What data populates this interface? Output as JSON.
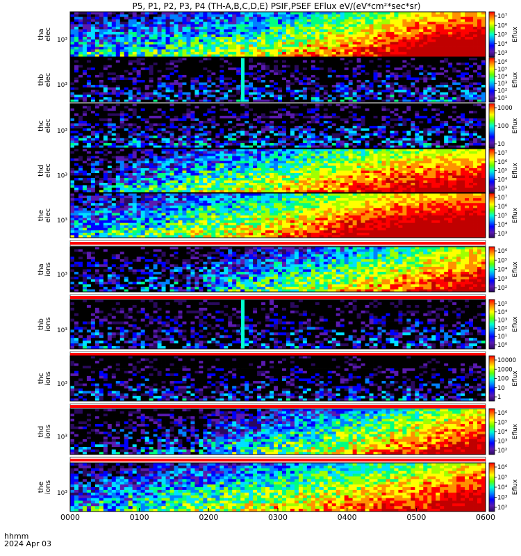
{
  "title": "P5, P1, P2, P3, P4 (TH-A,B,C,D,E) PSIF,PSEF EFlux eV/(eV*cm²*sec*sr)",
  "footer": {
    "label_line1": "hhmm",
    "label_line2": "2024 Apr 03"
  },
  "colorbar_title": "Eflux",
  "colors": {
    "scale": [
      "#000000",
      "#2a0a5e",
      "#5a1ab0",
      "#0000ff",
      "#0080ff",
      "#00e0ff",
      "#00ff80",
      "#a0ff00",
      "#ffff00",
      "#ff9000",
      "#ff0000",
      "#c00000"
    ]
  },
  "chart_data": {
    "type": "heatmap",
    "x_ticks": [
      "0000",
      "0100",
      "0200",
      "0300",
      "0400",
      "0500",
      "0600"
    ],
    "x_range_hours": [
      0,
      6
    ],
    "panels": [
      {
        "id": "tha-elec",
        "label1": "tha",
        "label2": "elec",
        "y_tick": "10³",
        "cbar_ticks": [
          "10⁷",
          "10⁶",
          "10⁵",
          "10⁴",
          "10³"
        ],
        "has_status_bar": false,
        "spike": false,
        "profile": [
          0.3,
          0.35,
          0.45,
          0.55,
          0.68,
          0.85,
          0.95
        ]
      },
      {
        "id": "thb-elec",
        "label1": "thb",
        "label2": "elec",
        "y_tick": "10³",
        "cbar_ticks": [
          "10⁶",
          "10⁵",
          "10⁴",
          "10³",
          "10²",
          "10¹"
        ],
        "has_status_bar": false,
        "spike": true,
        "profile": [
          0.12,
          0.12,
          0.14,
          0.14,
          0.15,
          0.15,
          0.16
        ]
      },
      {
        "id": "thc-elec",
        "label1": "thc",
        "label2": "elec",
        "y_tick": "10³",
        "cbar_ticks": [
          "1000",
          "100",
          "10"
        ],
        "has_status_bar": false,
        "spike": false,
        "profile": [
          0.18,
          0.18,
          0.18,
          0.18,
          0.18,
          0.18,
          0.18
        ]
      },
      {
        "id": "thd-elec",
        "label1": "thd",
        "label2": "elec",
        "y_tick": "10³",
        "cbar_ticks": [
          "10⁷",
          "10⁶",
          "10⁵",
          "10⁴",
          "10³"
        ],
        "has_status_bar": false,
        "spike": false,
        "profile": [
          0.15,
          0.3,
          0.45,
          0.55,
          0.7,
          0.8,
          0.85
        ]
      },
      {
        "id": "the-elec",
        "label1": "the",
        "label2": "elec",
        "y_tick": "10³",
        "cbar_ticks": [
          "10⁷",
          "10⁶",
          "10⁵",
          "10⁴",
          "10³"
        ],
        "has_status_bar": true,
        "spike": false,
        "profile": [
          0.3,
          0.4,
          0.5,
          0.62,
          0.8,
          0.9,
          0.95
        ]
      },
      {
        "id": "tha-ions",
        "label1": "tha",
        "label2": "ions",
        "y_tick": "10³",
        "cbar_ticks": [
          "10⁶",
          "10⁵",
          "10⁴",
          "10³",
          "10²"
        ],
        "has_status_bar": true,
        "spike": false,
        "profile": [
          0.12,
          0.18,
          0.25,
          0.4,
          0.55,
          0.7,
          0.85
        ]
      },
      {
        "id": "thb-ions",
        "label1": "thb",
        "label2": "ions",
        "y_tick": "10³",
        "cbar_ticks": [
          "10⁵",
          "10⁴",
          "10³",
          "10²",
          "10¹",
          "10⁰"
        ],
        "has_status_bar": true,
        "spike": true,
        "profile": [
          0.1,
          0.1,
          0.1,
          0.12,
          0.12,
          0.12,
          0.12
        ]
      },
      {
        "id": "thc-ions",
        "label1": "thc",
        "label2": "ions",
        "y_tick": "10³",
        "cbar_ticks": [
          "10000",
          "1000",
          "100",
          "10",
          "1"
        ],
        "has_status_bar": true,
        "spike": false,
        "profile": [
          0.1,
          0.1,
          0.1,
          0.1,
          0.1,
          0.1,
          0.1
        ]
      },
      {
        "id": "thd-ions",
        "label1": "thd",
        "label2": "ions",
        "y_tick": "10³",
        "cbar_ticks": [
          "10⁶",
          "10⁵",
          "10⁴",
          "10³",
          "10²"
        ],
        "has_status_bar": true,
        "spike": false,
        "profile": [
          0.1,
          0.15,
          0.25,
          0.4,
          0.55,
          0.7,
          0.85
        ]
      },
      {
        "id": "the-ions",
        "label1": "the",
        "label2": "ions",
        "y_tick": "10³",
        "cbar_ticks": [
          "10⁶",
          "10⁵",
          "10⁴",
          "10³",
          "10²"
        ],
        "has_status_bar": false,
        "spike": false,
        "profile": [
          0.25,
          0.35,
          0.45,
          0.55,
          0.65,
          0.75,
          0.88
        ]
      }
    ]
  }
}
